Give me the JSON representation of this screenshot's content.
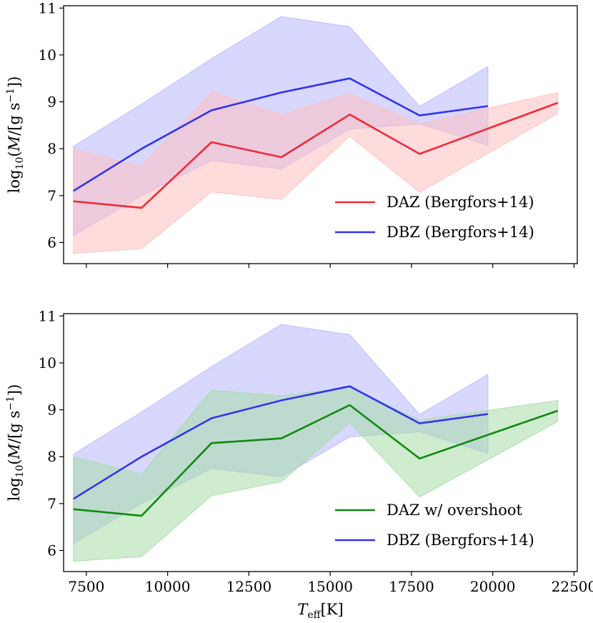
{
  "chart_data": [
    {
      "type": "line",
      "xlim": [
        6800,
        22600
      ],
      "ylim": [
        5.55,
        11.05
      ],
      "xticks": [
        7500,
        10000,
        12500,
        15000,
        17500,
        20000,
        22500
      ],
      "yticks": [
        6,
        7,
        8,
        9,
        10,
        11
      ],
      "ylabel": "log10(Ṁ/[g s^-1])",
      "xlabel": "",
      "show_xtick_labels": false,
      "legend": "bottom-right",
      "series": [
        {
          "name": "DBZ (Bergfors+14)",
          "color": "#3333ee",
          "band_color": "#b8b8ff",
          "x": [
            7100,
            9200,
            11350,
            13500,
            15600,
            17750,
            19850
          ],
          "values": [
            7.1,
            8.0,
            8.82,
            9.2,
            9.5,
            8.71,
            8.91
          ],
          "upper": [
            8.05,
            8.95,
            9.92,
            10.82,
            10.6,
            8.9,
            9.75
          ],
          "lower": [
            6.15,
            7.0,
            7.75,
            7.57,
            8.42,
            8.53,
            8.07
          ]
        },
        {
          "name": "DAZ (Bergfors+14)",
          "color": "#ee2b3b",
          "band_color": "#ffc0c0",
          "x": [
            7100,
            9200,
            11350,
            13500,
            15600,
            17750,
            22000
          ],
          "values": [
            6.88,
            6.74,
            8.14,
            7.82,
            8.73,
            7.89,
            8.98
          ],
          "upper": [
            8.0,
            7.63,
            9.22,
            8.73,
            9.18,
            8.53,
            9.2
          ],
          "lower": [
            5.77,
            5.87,
            7.08,
            6.92,
            8.27,
            7.07,
            8.75
          ]
        }
      ],
      "legend_entries": [
        {
          "label": "DAZ (Bergfors+14)",
          "color": "#ee2b3b"
        },
        {
          "label": "DBZ (Bergfors+14)",
          "color": "#3333ee"
        }
      ]
    },
    {
      "type": "line",
      "xlim": [
        6800,
        22600
      ],
      "ylim": [
        5.55,
        11.05
      ],
      "xticks": [
        7500,
        10000,
        12500,
        15000,
        17500,
        20000,
        22500
      ],
      "yticks": [
        6,
        7,
        8,
        9,
        10,
        11
      ],
      "ylabel": "log10(Ṁ/[g s^-1])",
      "xlabel": "Teff[K]",
      "show_xtick_labels": true,
      "legend": "bottom-right",
      "series": [
        {
          "name": "DBZ (Bergfors+14)",
          "color": "#3333ee",
          "band_color": "#b8b8ff",
          "x": [
            7100,
            9200,
            11350,
            13500,
            15600,
            17750,
            19850
          ],
          "values": [
            7.1,
            8.0,
            8.82,
            9.2,
            9.5,
            8.71,
            8.91
          ],
          "upper": [
            8.05,
            8.95,
            9.92,
            10.82,
            10.6,
            8.9,
            9.75
          ],
          "lower": [
            6.15,
            7.0,
            7.75,
            7.57,
            8.42,
            8.53,
            8.07
          ]
        },
        {
          "name": "DAZ w/ overshoot",
          "color": "#118811",
          "band_color": "#a8dca8",
          "x": [
            7100,
            9200,
            11350,
            13500,
            15600,
            17750,
            22000
          ],
          "values": [
            6.88,
            6.74,
            8.29,
            8.39,
            9.1,
            7.96,
            8.98
          ],
          "upper": [
            8.0,
            7.63,
            9.42,
            9.3,
            9.48,
            8.78,
            9.2
          ],
          "lower": [
            5.77,
            5.87,
            7.17,
            7.47,
            8.72,
            7.14,
            8.75
          ]
        }
      ],
      "legend_entries": [
        {
          "label": "DAZ w/ overshoot",
          "color": "#118811"
        },
        {
          "label": "DBZ (Bergfors+14)",
          "color": "#3333ee"
        }
      ]
    }
  ],
  "labels": {
    "ylabel_log": "log",
    "ylabel_sub": "10",
    "ylabel_open": "(",
    "ylabel_M": "M",
    "ylabel_mid": "/[g s",
    "ylabel_exp": "−1",
    "ylabel_close": "])",
    "xlabel_T": "T",
    "xlabel_sub": "eff",
    "xlabel_unit": "[K]"
  }
}
